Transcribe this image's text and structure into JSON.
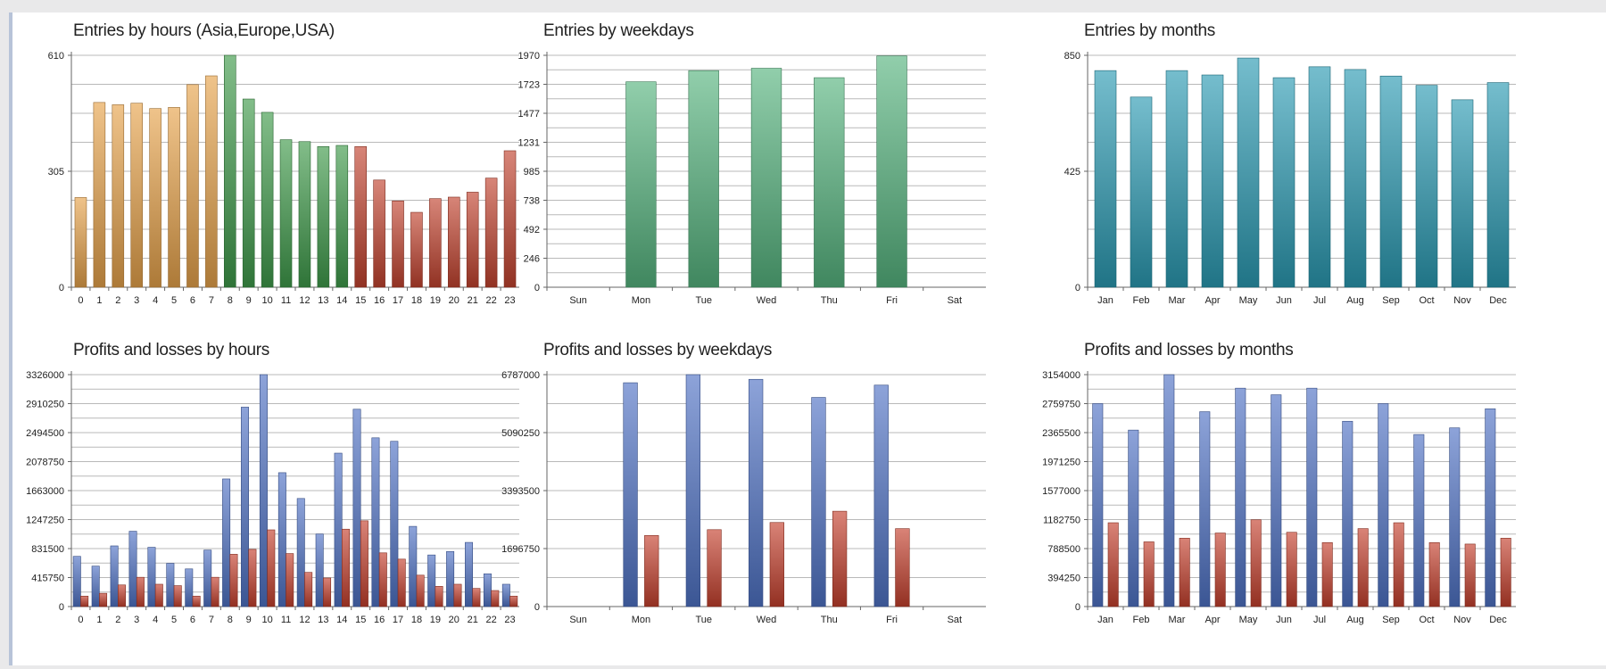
{
  "charts": [
    {
      "id": "entries-hours",
      "title": "Entries by hours (Asia,Europe,USA)",
      "chart_type": "bar",
      "categories": [
        "0",
        "1",
        "2",
        "3",
        "4",
        "5",
        "6",
        "7",
        "8",
        "9",
        "10",
        "11",
        "12",
        "13",
        "14",
        "15",
        "16",
        "17",
        "18",
        "19",
        "20",
        "21",
        "22",
        "23"
      ],
      "series": [
        {
          "name": "Entries",
          "values": [
            236,
            486,
            480,
            484,
            470,
            473,
            533,
            556,
            610,
            495,
            460,
            388,
            383,
            370,
            373,
            370,
            282,
            227,
            197,
            233,
            237,
            250,
            287,
            359
          ]
        }
      ],
      "bar_colors": [
        "#e7a24b",
        "#e7a24b",
        "#e7a24b",
        "#e7a24b",
        "#e7a24b",
        "#e7a24b",
        "#e7a24b",
        "#e7a24b",
        "#3f9a4a",
        "#3f9a4a",
        "#3f9a4a",
        "#3f9a4a",
        "#3f9a4a",
        "#3f9a4a",
        "#3f9a4a",
        "#c1432f",
        "#c1432f",
        "#c1432f",
        "#c1432f",
        "#c1432f",
        "#c1432f",
        "#c1432f",
        "#c1432f",
        "#c1432f"
      ],
      "y_ticks": [
        "0",
        "305",
        "610"
      ],
      "ylim": [
        0,
        610
      ]
    },
    {
      "id": "entries-weekdays",
      "title": "Entries by weekdays",
      "chart_type": "bar",
      "categories": [
        "Sun",
        "Mon",
        "Tue",
        "Wed",
        "Thu",
        "Fri",
        "Sat"
      ],
      "series": [
        {
          "name": "Entries",
          "values": [
            0,
            1745,
            1840,
            1860,
            1780,
            1965,
            0
          ]
        }
      ],
      "bar_colors": [
        "#55b47e",
        "#55b47e",
        "#55b47e",
        "#55b47e",
        "#55b47e",
        "#55b47e",
        "#55b47e"
      ],
      "y_ticks": [
        "0",
        "246",
        "492",
        "738",
        "985",
        "1231",
        "1477",
        "1723",
        "1970"
      ],
      "ylim": [
        0,
        1970
      ]
    },
    {
      "id": "entries-months",
      "title": "Entries by months",
      "chart_type": "bar",
      "categories": [
        "Jan",
        "Feb",
        "Mar",
        "Apr",
        "May",
        "Jun",
        "Jul",
        "Aug",
        "Sep",
        "Oct",
        "Nov",
        "Dec"
      ],
      "series": [
        {
          "name": "Entries",
          "values": [
            794,
            697,
            794,
            778,
            840,
            768,
            808,
            798,
            774,
            740,
            687,
            750
          ]
        }
      ],
      "bar_colors": [
        "#2a9ab2",
        "#2a9ab2",
        "#2a9ab2",
        "#2a9ab2",
        "#2a9ab2",
        "#2a9ab2",
        "#2a9ab2",
        "#2a9ab2",
        "#2a9ab2",
        "#2a9ab2",
        "#2a9ab2",
        "#2a9ab2"
      ],
      "y_ticks": [
        "0",
        "425",
        "850"
      ],
      "ylim": [
        0,
        850
      ]
    },
    {
      "id": "pl-hours",
      "title": "Profits and losses by hours",
      "chart_type": "bar",
      "categories": [
        "0",
        "1",
        "2",
        "3",
        "4",
        "5",
        "6",
        "7",
        "8",
        "9",
        "10",
        "11",
        "12",
        "13",
        "14",
        "15",
        "16",
        "17",
        "18",
        "19",
        "20",
        "21",
        "22",
        "23"
      ],
      "series": [
        {
          "name": "Profits",
          "values": [
            720000,
            580000,
            870000,
            1080000,
            850000,
            620000,
            540000,
            810000,
            1830000,
            2860000,
            3326000,
            1920000,
            1550000,
            1040000,
            2200000,
            2830000,
            2420000,
            2370000,
            1150000,
            740000,
            790000,
            920000,
            470000,
            320000
          ]
        },
        {
          "name": "Losses",
          "values": [
            150000,
            190000,
            310000,
            420000,
            320000,
            300000,
            150000,
            420000,
            750000,
            820000,
            1100000,
            760000,
            490000,
            410000,
            1110000,
            1230000,
            770000,
            680000,
            450000,
            290000,
            320000,
            260000,
            230000,
            150000
          ]
        }
      ],
      "series_colors": [
        "#4f72c5",
        "#c4402d"
      ],
      "y_ticks": [
        "0",
        "415750",
        "831500",
        "1247250",
        "1663000",
        "2078750",
        "2494500",
        "2910250",
        "3326000"
      ],
      "ylim": [
        0,
        3326000
      ]
    },
    {
      "id": "pl-weekdays",
      "title": "Profits and losses by weekdays",
      "chart_type": "bar",
      "categories": [
        "Sun",
        "Mon",
        "Tue",
        "Wed",
        "Thu",
        "Fri",
        "Sat"
      ],
      "series": [
        {
          "name": "Profits",
          "values": [
            0,
            6550000,
            6787000,
            6650000,
            6120000,
            6480000,
            0
          ]
        },
        {
          "name": "Losses",
          "values": [
            0,
            2080000,
            2250000,
            2460000,
            2790000,
            2280000,
            0
          ]
        }
      ],
      "series_colors": [
        "#4f72c5",
        "#c4402d"
      ],
      "y_ticks": [
        "0",
        "1696750",
        "3393500",
        "5090250",
        "6787000"
      ],
      "ylim": [
        0,
        6787000
      ]
    },
    {
      "id": "pl-months",
      "title": "Profits and losses by months",
      "chart_type": "bar",
      "categories": [
        "Jan",
        "Feb",
        "Mar",
        "Apr",
        "May",
        "Jun",
        "Jul",
        "Aug",
        "Sep",
        "Oct",
        "Nov",
        "Dec"
      ],
      "series": [
        {
          "name": "Profits",
          "values": [
            2760000,
            2400000,
            3154000,
            2650000,
            2970000,
            2880000,
            2970000,
            2520000,
            2760000,
            2340000,
            2430000,
            2690000
          ]
        },
        {
          "name": "Losses",
          "values": [
            1140000,
            880000,
            930000,
            1000000,
            1180000,
            1010000,
            870000,
            1060000,
            1140000,
            870000,
            850000,
            930000
          ]
        }
      ],
      "series_colors": [
        "#4f72c5",
        "#c4402d"
      ],
      "y_ticks": [
        "0",
        "394250",
        "788500",
        "1182750",
        "1577000",
        "1971250",
        "2365500",
        "2759750",
        "3154000"
      ],
      "ylim": [
        0,
        3154000
      ]
    }
  ]
}
